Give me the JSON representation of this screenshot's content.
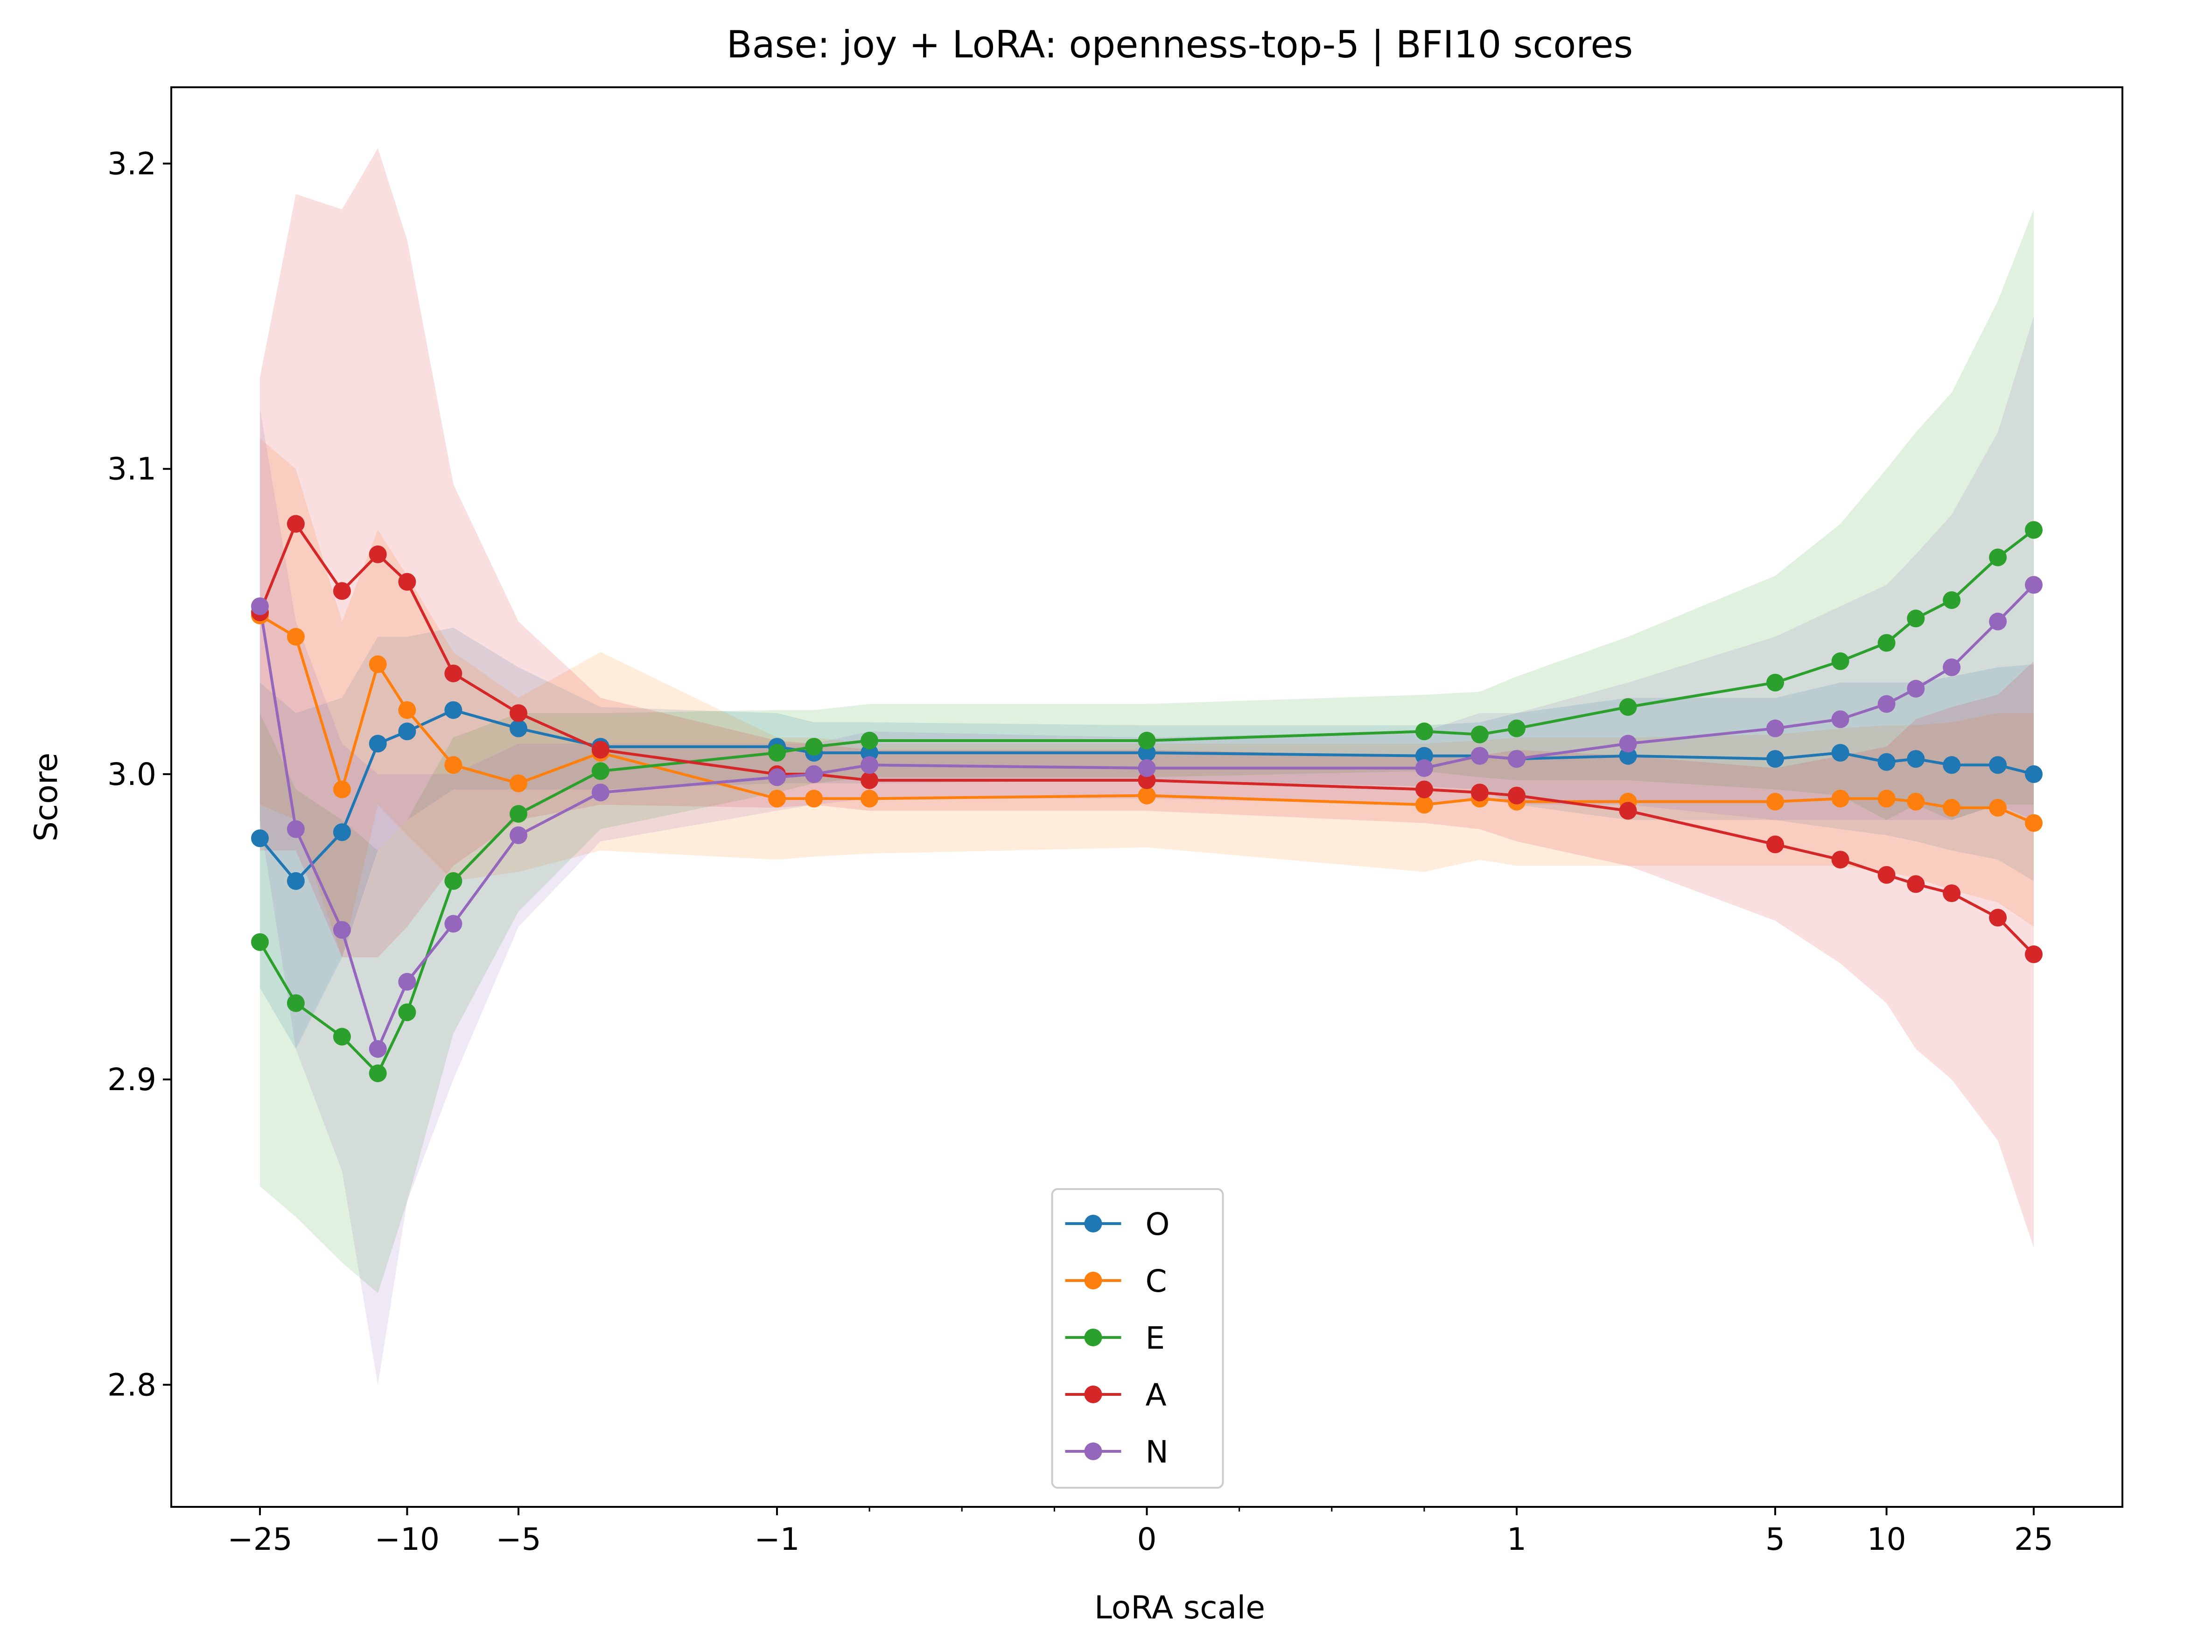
{
  "chart_data": {
    "type": "line",
    "title": "Base: joy + LoRA: openness-top-5 | BFI10 scores",
    "xlabel": "LoRA scale",
    "ylabel": "Score",
    "x_scale": "symlog",
    "ylim": [
      2.76,
      3.225
    ],
    "y_ticks": [
      2.8,
      2.9,
      3.0,
      3.1,
      3.2
    ],
    "y_tick_labels": [
      "2.8",
      "2.9",
      "3.0",
      "3.1",
      "3.2"
    ],
    "x_major_ticks": [
      -25,
      -10,
      -5,
      -1,
      0,
      1,
      5,
      10,
      25
    ],
    "x_major_tick_labels": [
      "−25",
      "−10",
      "−5",
      "−1",
      "0",
      "1",
      "5",
      "10",
      "25"
    ],
    "x_minor_ticks": [
      -0.75,
      -0.5,
      -0.25,
      0.25,
      0.5,
      0.75
    ],
    "legend_position": "lower center",
    "grid": false,
    "x": [
      -25,
      -20,
      -15,
      -12,
      -10,
      -7.5,
      -5,
      -3,
      -1,
      -0.9,
      -0.75,
      0,
      0.75,
      0.9,
      1,
      2,
      5,
      7.5,
      10,
      12,
      15,
      20,
      25
    ],
    "series": [
      {
        "name": "O",
        "color": "#1f77b4",
        "values": [
          2.979,
          2.965,
          2.981,
          3.01,
          3.014,
          3.021,
          3.015,
          3.009,
          3.009,
          3.007,
          3.007,
          3.007,
          3.006,
          3.006,
          3.005,
          3.006,
          3.005,
          3.007,
          3.004,
          3.005,
          3.003,
          3.003,
          3.0
        ],
        "lower": [
          2.93,
          2.91,
          2.94,
          2.975,
          2.985,
          2.995,
          2.995,
          2.995,
          2.997,
          2.997,
          2.997,
          2.998,
          2.996,
          2.995,
          2.99,
          2.985,
          2.985,
          2.982,
          2.98,
          2.978,
          2.975,
          2.972,
          2.965
        ],
        "upper": [
          3.03,
          3.02,
          3.025,
          3.045,
          3.045,
          3.048,
          3.035,
          3.022,
          3.02,
          3.017,
          3.017,
          3.016,
          3.016,
          3.017,
          3.02,
          3.025,
          3.025,
          3.03,
          3.03,
          3.03,
          3.032,
          3.035,
          3.036
        ]
      },
      {
        "name": "C",
        "color": "#ff7f0e",
        "values": [
          3.052,
          3.045,
          2.995,
          3.036,
          3.021,
          3.003,
          2.997,
          3.007,
          2.992,
          2.992,
          2.992,
          2.993,
          2.99,
          2.992,
          2.991,
          2.991,
          2.991,
          2.992,
          2.992,
          2.991,
          2.989,
          2.989,
          2.984
        ],
        "lower": [
          2.99,
          2.985,
          2.94,
          2.99,
          2.98,
          2.965,
          2.968,
          2.975,
          2.972,
          2.973,
          2.974,
          2.976,
          2.968,
          2.972,
          2.97,
          2.97,
          2.97,
          2.97,
          2.968,
          2.966,
          2.962,
          2.958,
          2.95
        ],
        "upper": [
          3.11,
          3.1,
          3.05,
          3.08,
          3.065,
          3.04,
          3.025,
          3.04,
          3.012,
          3.012,
          3.01,
          3.01,
          3.01,
          3.011,
          3.012,
          3.012,
          3.013,
          3.015,
          3.016,
          3.016,
          3.017,
          3.02,
          3.02
        ]
      },
      {
        "name": "E",
        "color": "#2ca02c",
        "values": [
          2.945,
          2.925,
          2.914,
          2.902,
          2.922,
          2.965,
          2.987,
          3.001,
          3.007,
          3.009,
          3.011,
          3.011,
          3.014,
          3.013,
          3.015,
          3.022,
          3.03,
          3.037,
          3.043,
          3.051,
          3.057,
          3.071,
          3.08
        ],
        "lower": [
          2.865,
          2.855,
          2.84,
          2.83,
          2.86,
          2.915,
          2.955,
          2.982,
          2.994,
          2.997,
          2.999,
          2.999,
          3.001,
          2.999,
          2.998,
          2.998,
          2.995,
          2.993,
          2.985,
          2.99,
          2.985,
          2.99,
          2.99
        ],
        "upper": [
          3.02,
          2.995,
          2.985,
          2.975,
          2.985,
          3.012,
          3.02,
          3.02,
          3.021,
          3.021,
          3.023,
          3.023,
          3.026,
          3.027,
          3.032,
          3.045,
          3.065,
          3.082,
          3.1,
          3.112,
          3.125,
          3.155,
          3.185
        ]
      },
      {
        "name": "A",
        "color": "#d62728",
        "values": [
          3.053,
          3.082,
          3.06,
          3.072,
          3.063,
          3.033,
          3.02,
          3.008,
          3.0,
          3.0,
          2.998,
          2.998,
          2.995,
          2.994,
          2.993,
          2.988,
          2.977,
          2.972,
          2.967,
          2.964,
          2.961,
          2.953,
          2.941
        ],
        "lower": [
          2.975,
          2.975,
          2.94,
          2.94,
          2.95,
          2.97,
          2.985,
          2.99,
          2.989,
          2.99,
          2.988,
          2.988,
          2.984,
          2.982,
          2.978,
          2.97,
          2.952,
          2.938,
          2.925,
          2.91,
          2.9,
          2.88,
          2.845
        ],
        "upper": [
          3.13,
          3.19,
          3.185,
          3.205,
          3.175,
          3.095,
          3.05,
          3.025,
          3.011,
          3.01,
          3.008,
          3.008,
          3.006,
          3.006,
          3.008,
          3.006,
          3.002,
          3.006,
          3.009,
          3.018,
          3.022,
          3.026,
          3.037
        ]
      },
      {
        "name": "N",
        "color": "#9467bd",
        "values": [
          3.055,
          2.982,
          2.949,
          2.91,
          2.932,
          2.951,
          2.98,
          2.994,
          2.999,
          3.0,
          3.003,
          3.002,
          3.002,
          3.006,
          3.005,
          3.01,
          3.015,
          3.018,
          3.023,
          3.028,
          3.035,
          3.05,
          3.062
        ],
        "lower": [
          2.985,
          2.91,
          2.87,
          2.8,
          2.86,
          2.9,
          2.95,
          2.978,
          2.988,
          2.99,
          2.992,
          2.992,
          2.99,
          2.992,
          2.99,
          2.99,
          2.985,
          2.985,
          2.985,
          2.985,
          2.985,
          2.99,
          2.985
        ],
        "upper": [
          3.12,
          3.05,
          3.01,
          3.0,
          3.0,
          3.0,
          3.01,
          3.01,
          3.01,
          3.01,
          3.014,
          3.012,
          3.014,
          3.02,
          3.02,
          3.03,
          3.045,
          3.055,
          3.062,
          3.072,
          3.085,
          3.112,
          3.15
        ]
      }
    ]
  }
}
